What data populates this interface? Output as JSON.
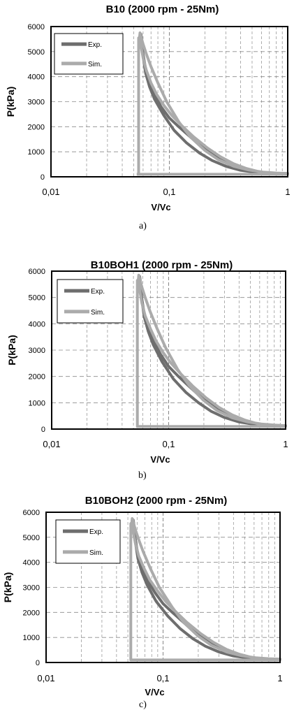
{
  "chart_data": [
    {
      "type": "line",
      "panel_label": "a)",
      "title": "B10 (2000 rpm - 25Nm)",
      "xlabel": "V/Vc",
      "ylabel": "P(kPa)",
      "xscale": "log",
      "xlim": [
        0.01,
        1
      ],
      "ylim": [
        0,
        6000
      ],
      "xticks": [
        0.01,
        0.1,
        1
      ],
      "xtick_labels": [
        "0,01",
        "0,1",
        "1"
      ],
      "yticks": [
        0,
        1000,
        2000,
        3000,
        4000,
        5000,
        6000
      ],
      "ytick_labels": [
        "0",
        "1000",
        "2000",
        "3000",
        "4000",
        "5000",
        "6000"
      ],
      "grid": "dashed",
      "legend": "top-left",
      "series": [
        {
          "name": "Exp.",
          "color": "#6e6e6e",
          "x": [
            0.057,
            0.0575,
            0.058,
            0.059,
            0.06,
            0.063,
            0.068,
            0.075,
            0.09,
            0.11,
            0.14,
            0.18,
            0.23,
            0.3,
            0.4,
            0.55,
            0.75,
            1.0,
            1.0,
            0.8,
            0.6,
            0.45,
            0.35,
            0.27,
            0.2,
            0.15,
            0.12,
            0.1,
            0.085,
            0.075,
            0.068,
            0.063,
            0.06,
            0.058,
            0.0575,
            0.057
          ],
          "y": [
            5650,
            5700,
            5600,
            5300,
            4800,
            4150,
            3600,
            3100,
            2450,
            1850,
            1350,
            950,
            650,
            420,
            260,
            170,
            140,
            130,
            120,
            110,
            140,
            260,
            430,
            700,
            1100,
            1600,
            2000,
            2350,
            2800,
            3300,
            3800,
            4300,
            4900,
            5350,
            5600,
            5650
          ]
        },
        {
          "name": "Sim.",
          "color": "#ababab",
          "x": [
            0.056,
            0.0565,
            0.057,
            0.058,
            0.06,
            0.064,
            0.07,
            0.08,
            0.095,
            0.12,
            0.15,
            0.2,
            0.26,
            0.35,
            0.47,
            0.62,
            0.8,
            1.0,
            1.0,
            0.8,
            0.6,
            0.45,
            0.35,
            0.27,
            0.21,
            0.16,
            0.13,
            0.105,
            0.09,
            0.078,
            0.07,
            0.064,
            0.06,
            0.058,
            0.056,
            0.055,
            0.055,
            0.055
          ],
          "y": [
            5550,
            5750,
            5700,
            5550,
            5300,
            4900,
            4400,
            3750,
            3000,
            2200,
            1600,
            1050,
            680,
            420,
            270,
            190,
            150,
            130,
            110,
            100,
            180,
            330,
            520,
            800,
            1150,
            1600,
            2000,
            2450,
            2850,
            3300,
            3750,
            4250,
            4750,
            5150,
            5500,
            5550,
            100,
            100
          ]
        }
      ]
    },
    {
      "type": "line",
      "panel_label": "b)",
      "title": "B10BOH1 (2000 rpm - 25Nm)",
      "xlabel": "V/Vc",
      "ylabel": "P(kPa)",
      "xscale": "log",
      "xlim": [
        0.01,
        1
      ],
      "ylim": [
        0,
        6000
      ],
      "xticks": [
        0.01,
        0.1,
        1
      ],
      "xtick_labels": [
        "0,01",
        "0,1",
        "1"
      ],
      "yticks": [
        0,
        1000,
        2000,
        3000,
        4000,
        5000,
        6000
      ],
      "ytick_labels": [
        "0",
        "1000",
        "2000",
        "3000",
        "4000",
        "5000",
        "6000"
      ],
      "grid": "dashed",
      "legend": "top-left",
      "series": [
        {
          "name": "Exp.",
          "color": "#6e6e6e",
          "x": [
            0.056,
            0.0565,
            0.057,
            0.058,
            0.059,
            0.062,
            0.067,
            0.074,
            0.088,
            0.11,
            0.14,
            0.18,
            0.23,
            0.3,
            0.4,
            0.55,
            0.75,
            1.0,
            1.0,
            0.8,
            0.6,
            0.45,
            0.35,
            0.27,
            0.2,
            0.15,
            0.12,
            0.1,
            0.085,
            0.074,
            0.067,
            0.062,
            0.059,
            0.057,
            0.0565,
            0.056
          ],
          "y": [
            5750,
            5800,
            5700,
            5400,
            4900,
            4250,
            3700,
            3200,
            2550,
            1900,
            1400,
            1000,
            680,
            440,
            270,
            175,
            140,
            130,
            120,
            110,
            140,
            260,
            440,
            720,
            1120,
            1620,
            2020,
            2380,
            2850,
            3350,
            3850,
            4350,
            4950,
            5400,
            5700,
            5750
          ]
        },
        {
          "name": "Sim.",
          "color": "#ababab",
          "x": [
            0.055,
            0.0555,
            0.056,
            0.057,
            0.059,
            0.063,
            0.069,
            0.079,
            0.094,
            0.12,
            0.15,
            0.2,
            0.26,
            0.35,
            0.47,
            0.62,
            0.8,
            1.0,
            1.0,
            0.8,
            0.6,
            0.45,
            0.35,
            0.27,
            0.21,
            0.16,
            0.13,
            0.105,
            0.09,
            0.078,
            0.07,
            0.063,
            0.059,
            0.057,
            0.055,
            0.054,
            0.054,
            0.054
          ],
          "y": [
            5650,
            5850,
            5800,
            5650,
            5400,
            5000,
            4500,
            3850,
            3100,
            2250,
            1650,
            1080,
            700,
            430,
            275,
            195,
            150,
            130,
            110,
            100,
            180,
            340,
            540,
            820,
            1180,
            1640,
            2050,
            2500,
            2900,
            3350,
            3800,
            4300,
            4800,
            5200,
            5600,
            5650,
            100,
            100
          ]
        }
      ]
    },
    {
      "type": "line",
      "panel_label": "c)",
      "title": "B10BOH2 (2000 rpm - 25Nm)",
      "xlabel": "V/Vc",
      "ylabel": "P(kPa)",
      "xscale": "log",
      "xlim": [
        0.01,
        1
      ],
      "ylim": [
        0,
        6000
      ],
      "xticks": [
        0.01,
        0.1,
        1
      ],
      "xtick_labels": [
        "0,01",
        "0,1",
        "1"
      ],
      "yticks": [
        0,
        1000,
        2000,
        3000,
        4000,
        5000,
        6000
      ],
      "ytick_labels": [
        "0",
        "1000",
        "2000",
        "3000",
        "4000",
        "5000",
        "6000"
      ],
      "grid": "dashed",
      "legend": "top-left",
      "series": [
        {
          "name": "Exp.",
          "color": "#6e6e6e",
          "x": [
            0.055,
            0.0555,
            0.056,
            0.057,
            0.058,
            0.061,
            0.066,
            0.073,
            0.087,
            0.11,
            0.14,
            0.18,
            0.23,
            0.3,
            0.4,
            0.55,
            0.75,
            1.0,
            1.0,
            0.8,
            0.6,
            0.45,
            0.35,
            0.27,
            0.2,
            0.15,
            0.12,
            0.1,
            0.085,
            0.073,
            0.066,
            0.061,
            0.058,
            0.056,
            0.0555,
            0.055
          ],
          "y": [
            5650,
            5700,
            5600,
            5300,
            4800,
            4150,
            3600,
            3100,
            2450,
            1850,
            1350,
            950,
            650,
            420,
            260,
            170,
            140,
            130,
            120,
            110,
            140,
            260,
            430,
            700,
            1100,
            1600,
            2000,
            2350,
            2800,
            3300,
            3800,
            4300,
            4900,
            5350,
            5600,
            5650
          ]
        },
        {
          "name": "Sim.",
          "color": "#ababab",
          "x": [
            0.054,
            0.0545,
            0.055,
            0.056,
            0.058,
            0.062,
            0.068,
            0.078,
            0.093,
            0.12,
            0.15,
            0.2,
            0.26,
            0.35,
            0.47,
            0.62,
            0.8,
            1.0,
            1.0,
            0.8,
            0.6,
            0.45,
            0.35,
            0.27,
            0.21,
            0.16,
            0.13,
            0.105,
            0.09,
            0.077,
            0.069,
            0.062,
            0.058,
            0.056,
            0.054,
            0.053,
            0.053,
            0.053
          ],
          "y": [
            5550,
            5750,
            5700,
            5550,
            5300,
            4900,
            4400,
            3750,
            3000,
            2200,
            1600,
            1050,
            680,
            420,
            270,
            190,
            150,
            130,
            110,
            100,
            180,
            330,
            520,
            800,
            1150,
            1600,
            2000,
            2450,
            2850,
            3300,
            3750,
            4250,
            4750,
            5150,
            5500,
            5550,
            100,
            100
          ]
        }
      ]
    }
  ]
}
